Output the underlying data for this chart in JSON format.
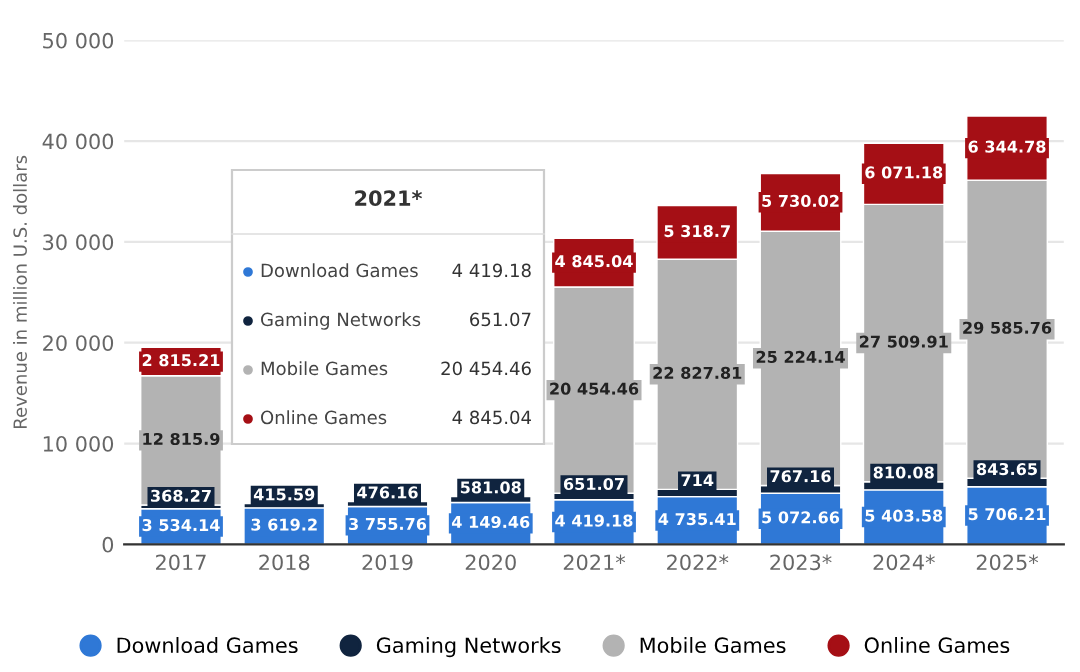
{
  "chart_data": {
    "type": "bar",
    "stacked": true,
    "ylabel": "Revenue in million U.S. dollars",
    "categories": [
      "2017",
      "2018",
      "2019",
      "2020",
      "2021*",
      "2022*",
      "2023*",
      "2024*",
      "2025*"
    ],
    "series": [
      {
        "name": "Download Games",
        "color": "#2f78d6",
        "values": [
          3534.14,
          3619.2,
          3755.76,
          4149.46,
          4419.18,
          4735.41,
          5072.66,
          5403.58,
          5706.21
        ],
        "value_labels": [
          "3 534.14",
          "3 619.2",
          "3 755.76",
          "4 149.46",
          "4 419.18",
          "4 735.41",
          "5 072.66",
          "5 403.58",
          "5 706.21"
        ]
      },
      {
        "name": "Gaming Networks",
        "color": "#10243f",
        "values": [
          368.27,
          415.59,
          476.16,
          581.08,
          651.07,
          714,
          767.16,
          810.08,
          843.65
        ],
        "value_labels": [
          "368.27",
          "415.59",
          "476.16",
          "581.08",
          "651.07",
          "714",
          "767.16",
          "810.08",
          "843.65"
        ]
      },
      {
        "name": "Mobile Games",
        "color": "#b3b3b3",
        "values": [
          12815.9,
          null,
          null,
          null,
          20454.46,
          22827.81,
          25224.14,
          27509.91,
          29585.76
        ],
        "value_labels": [
          "12 815.9",
          null,
          null,
          null,
          "20 454.46",
          "22 827.81",
          "25 224.14",
          "27 509.91",
          "29 585.76"
        ]
      },
      {
        "name": "Online Games",
        "color": "#a50f15",
        "values": [
          2815.21,
          null,
          null,
          null,
          4845.04,
          5318.7,
          5730.02,
          6071.18,
          6344.78
        ],
        "value_labels": [
          "2 815.21",
          null,
          null,
          null,
          "4 845.04",
          "5 318.7",
          "5 730.02",
          "6 071.18",
          "6 344.78"
        ]
      }
    ],
    "ylim": [
      0,
      50000
    ],
    "yticks": [
      0,
      {
        "value": 10000,
        "label": "10 000"
      },
      {
        "value": 20000,
        "label": "20 000"
      },
      {
        "value": 30000,
        "label": "30 000"
      },
      {
        "value": 40000,
        "label": "40 000"
      },
      {
        "value": 50000,
        "label": "50 000"
      }
    ],
    "grid": "y",
    "legend": "bottom",
    "marker": "circle",
    "annotations": [
      "2021*",
      "Download Games",
      "4 419.18",
      "Gaming Networks",
      "651.07",
      "Mobile Games",
      "20 454.46",
      "Online Games",
      "4 845.04"
    ]
  }
}
